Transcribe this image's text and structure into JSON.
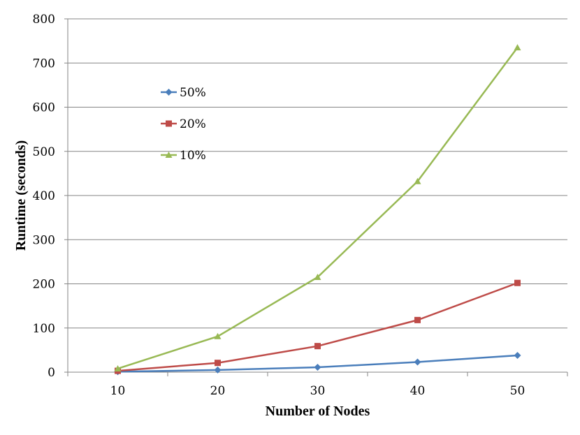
{
  "chart_data": {
    "type": "line",
    "x": [
      10,
      20,
      30,
      40,
      50
    ],
    "xlabel": "Number of Nodes",
    "ylabel": "Runtime (seconds)",
    "ylim": [
      0,
      800
    ],
    "yticks": [
      0,
      100,
      200,
      300,
      400,
      500,
      600,
      700,
      800
    ],
    "grid": "horizontal",
    "legend_position": "upper-left inside",
    "series": [
      {
        "name": "50%",
        "color": "#4a7ebb",
        "marker": "diamond",
        "values": [
          1,
          5,
          11,
          23,
          38
        ]
      },
      {
        "name": "20%",
        "color": "#be4b48",
        "marker": "square",
        "values": [
          3,
          21,
          59,
          118,
          202
        ]
      },
      {
        "name": "10%",
        "color": "#98b954",
        "marker": "triangle",
        "values": [
          8,
          81,
          215,
          432,
          735
        ]
      }
    ]
  }
}
